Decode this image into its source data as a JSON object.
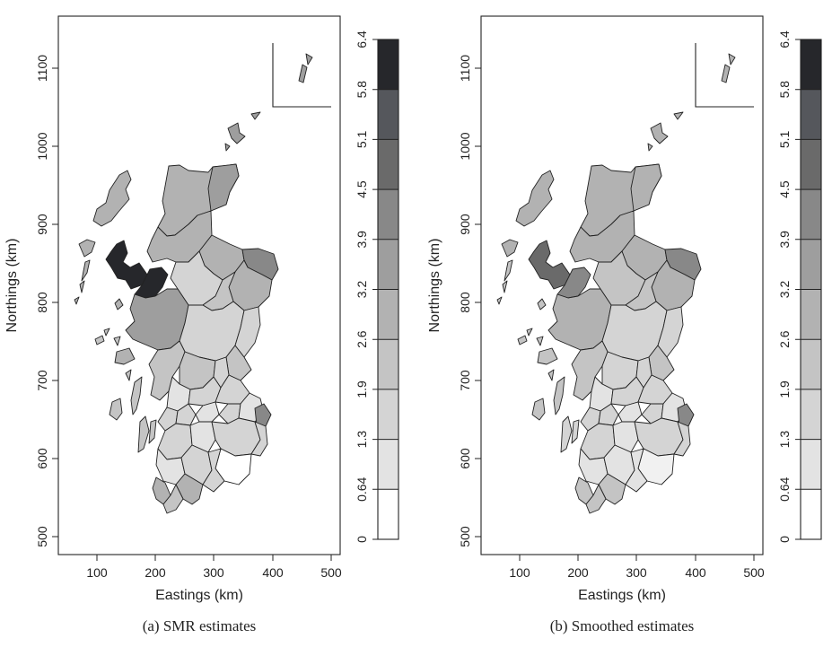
{
  "colors": {
    "bins": [
      "#ffffff",
      "#f1f1f1",
      "#e3e3e3",
      "#d4d4d4",
      "#c4c4c4",
      "#b2b2b2",
      "#9e9e9e",
      "#888888",
      "#6a6a6a",
      "#55575c",
      "#26272b"
    ]
  },
  "maps": [
    {
      "caption": "(a) SMR estimates",
      "x_label": "Eastings (km)",
      "y_label": "Northings (km)",
      "x_ticks": [
        "100",
        "200",
        "300",
        "400",
        "500"
      ],
      "y_ticks": [
        "500",
        "600",
        "700",
        "800",
        "900",
        "1000",
        "1100"
      ],
      "legend_labels": [
        "0",
        "0.64",
        "1.3",
        "1.9",
        "2.6",
        "3.2",
        "3.9",
        "4.5",
        "5.1",
        "5.8",
        "6.4"
      ]
    },
    {
      "caption": "(b) Smoothed estimates",
      "x_label": "Eastings (km)",
      "y_label": "Northings (km)",
      "x_ticks": [
        "100",
        "200",
        "300",
        "400",
        "500"
      ],
      "y_ticks": [
        "500",
        "600",
        "700",
        "800",
        "900",
        "1000",
        "1100"
      ],
      "legend_labels": [
        "0",
        "0.64",
        "1.3",
        "1.9",
        "2.6",
        "3.2",
        "3.9",
        "4.5",
        "5.1",
        "5.8",
        "6.4"
      ]
    }
  ]
}
